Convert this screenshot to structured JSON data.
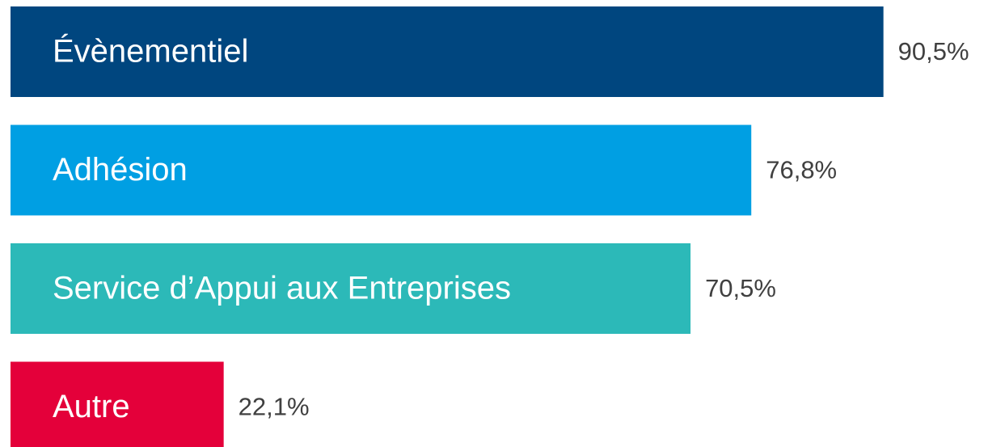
{
  "chart_data": {
    "type": "bar",
    "orientation": "horizontal",
    "categories": [
      "Évènementiel",
      "Adhésion",
      "Service d’Appui aux Entreprises",
      "Autre"
    ],
    "values": [
      90.5,
      76.8,
      70.5,
      22.1
    ],
    "value_labels": [
      "90,5%",
      "76,8%",
      "70,5%",
      "22,1%"
    ],
    "colors": [
      "#00467f",
      "#009fe3",
      "#2cb9b8",
      "#e4003a"
    ]
  }
}
